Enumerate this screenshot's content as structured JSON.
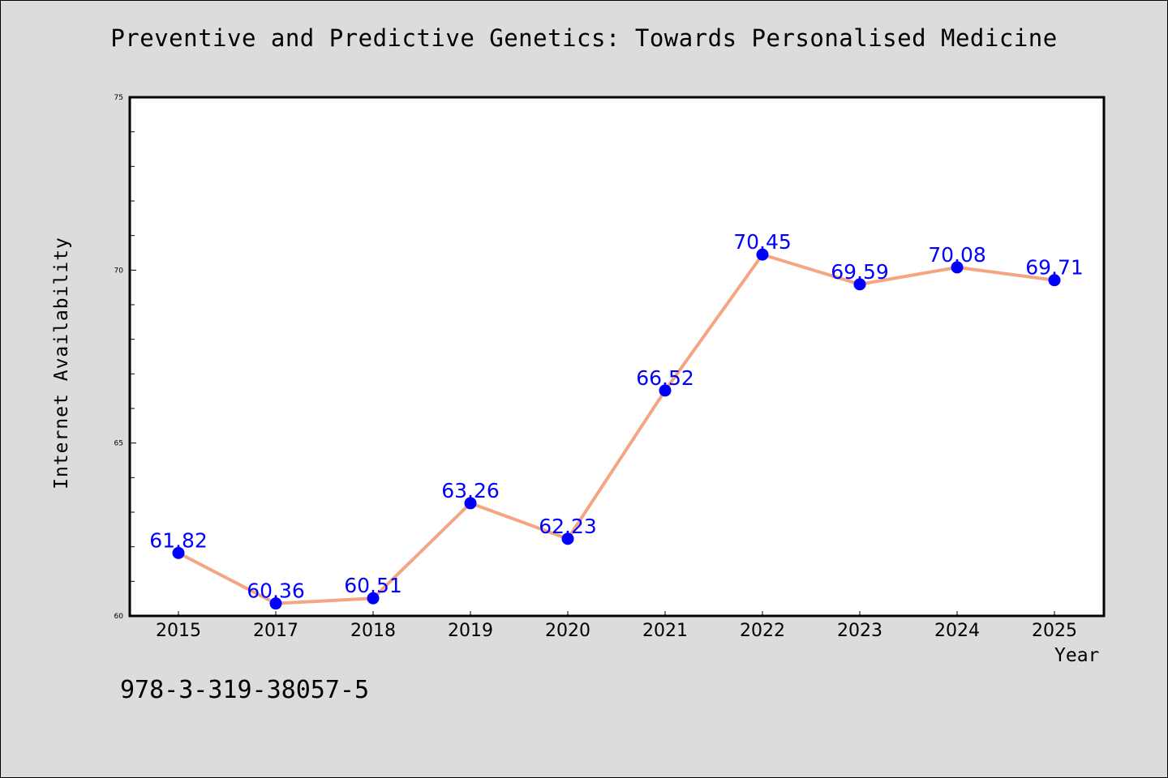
{
  "chart_data": {
    "type": "line",
    "title": "Preventive and Predictive Genetics: Towards Personalised Medicine",
    "xlabel": "Year",
    "ylabel": "Internet Availability",
    "categories": [
      "2015",
      "2017",
      "2018",
      "2019",
      "2020",
      "2021",
      "2022",
      "2023",
      "2024",
      "2025"
    ],
    "series": [
      {
        "values": [
          61.82,
          60.36,
          60.51,
          63.26,
          62.23,
          66.52,
          70.45,
          69.59,
          70.08,
          69.71
        ],
        "labels": [
          "61.82",
          "60.36",
          "60.51",
          "63.26",
          "62.23",
          "66.52",
          "70.45",
          "69.59",
          "70.08",
          "69.71"
        ],
        "line_color": "#f4a582",
        "marker_color": "#0000ff"
      }
    ],
    "ylim": [
      60,
      75
    ],
    "yticks": [
      "60",
      "65",
      "70",
      "75"
    ],
    "grid": false,
    "legend": "none"
  },
  "footer": {
    "isbn": "978-3-319-38057-5"
  }
}
